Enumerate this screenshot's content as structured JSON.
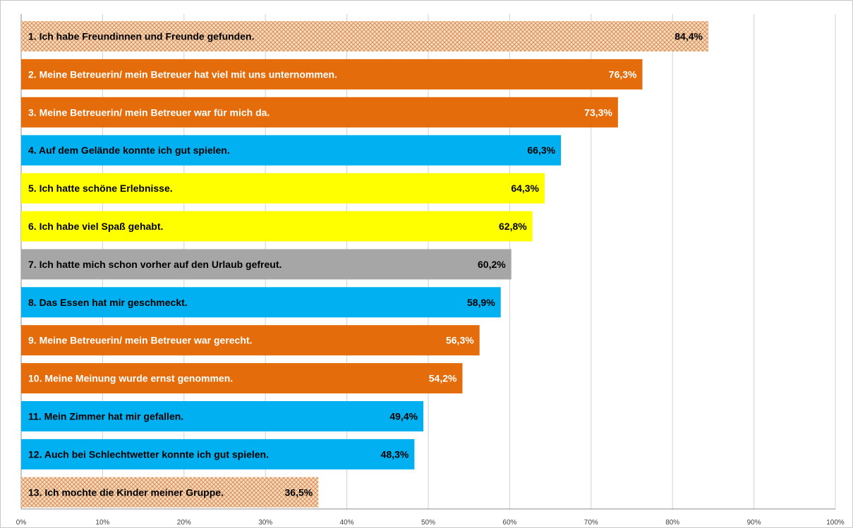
{
  "chart_data": {
    "type": "bar",
    "orientation": "horizontal",
    "title": "",
    "xlabel": "",
    "ylabel": "",
    "xlim": [
      0,
      100
    ],
    "grid": true,
    "legend": false,
    "x_ticks": [
      "0%",
      "10%",
      "20%",
      "30%",
      "40%",
      "50%",
      "60%",
      "70%",
      "80%",
      "90%",
      "100%"
    ],
    "bars": [
      {
        "label": "1. Ich habe Freundinnen und Freunde gefunden.",
        "value": 84.4,
        "value_label": "84,4%",
        "color": "#f5cfa8",
        "pattern": "crosshatch",
        "text_color": "#000000"
      },
      {
        "label": "2. Meine Betreuerin/ mein Betreuer hat viel mit uns unternommen.",
        "value": 76.3,
        "value_label": "76,3%",
        "color": "#e46c0a",
        "pattern": "solid",
        "text_color": "#ffffff"
      },
      {
        "label": "3. Meine Betreuerin/ mein Betreuer war für mich da.",
        "value": 73.3,
        "value_label": "73,3%",
        "color": "#e46c0a",
        "pattern": "solid",
        "text_color": "#ffffff"
      },
      {
        "label": "4. Auf dem Gelände konnte ich gut spielen.",
        "value": 66.3,
        "value_label": "66,3%",
        "color": "#00b0f0",
        "pattern": "solid",
        "text_color": "#000000"
      },
      {
        "label": "5. Ich hatte schöne Erlebnisse.",
        "value": 64.3,
        "value_label": "64,3%",
        "color": "#ffff00",
        "pattern": "solid",
        "text_color": "#000000"
      },
      {
        "label": "6. Ich habe viel Spaß gehabt.",
        "value": 62.8,
        "value_label": "62,8%",
        "color": "#ffff00",
        "pattern": "solid",
        "text_color": "#000000"
      },
      {
        "label": "7. Ich hatte mich schon vorher auf den Urlaub gefreut.",
        "value": 60.2,
        "value_label": "60,2%",
        "color": "#a6a6a6",
        "pattern": "solid",
        "text_color": "#000000"
      },
      {
        "label": "8. Das Essen hat mir geschmeckt.",
        "value": 58.9,
        "value_label": "58,9%",
        "color": "#00b0f0",
        "pattern": "solid",
        "text_color": "#000000"
      },
      {
        "label": "9. Meine Betreuerin/ mein Betreuer war gerecht.",
        "value": 56.3,
        "value_label": "56,3%",
        "color": "#e46c0a",
        "pattern": "solid",
        "text_color": "#ffffff"
      },
      {
        "label": "10. Meine Meinung wurde ernst genommen.",
        "value": 54.2,
        "value_label": "54,2%",
        "color": "#e46c0a",
        "pattern": "solid",
        "text_color": "#ffffff"
      },
      {
        "label": "11. Mein Zimmer hat mir gefallen.",
        "value": 49.4,
        "value_label": "49,4%",
        "color": "#00b0f0",
        "pattern": "solid",
        "text_color": "#000000"
      },
      {
        "label": "12. Auch bei Schlechtwetter konnte ich gut spielen.",
        "value": 48.3,
        "value_label": "48,3%",
        "color": "#00b0f0",
        "pattern": "solid",
        "text_color": "#000000"
      },
      {
        "label": "13. Ich mochte die Kinder meiner Gruppe.",
        "value": 36.5,
        "value_label": "36,5%",
        "color": "#f5cfa8",
        "pattern": "crosshatch",
        "text_color": "#000000"
      }
    ]
  }
}
